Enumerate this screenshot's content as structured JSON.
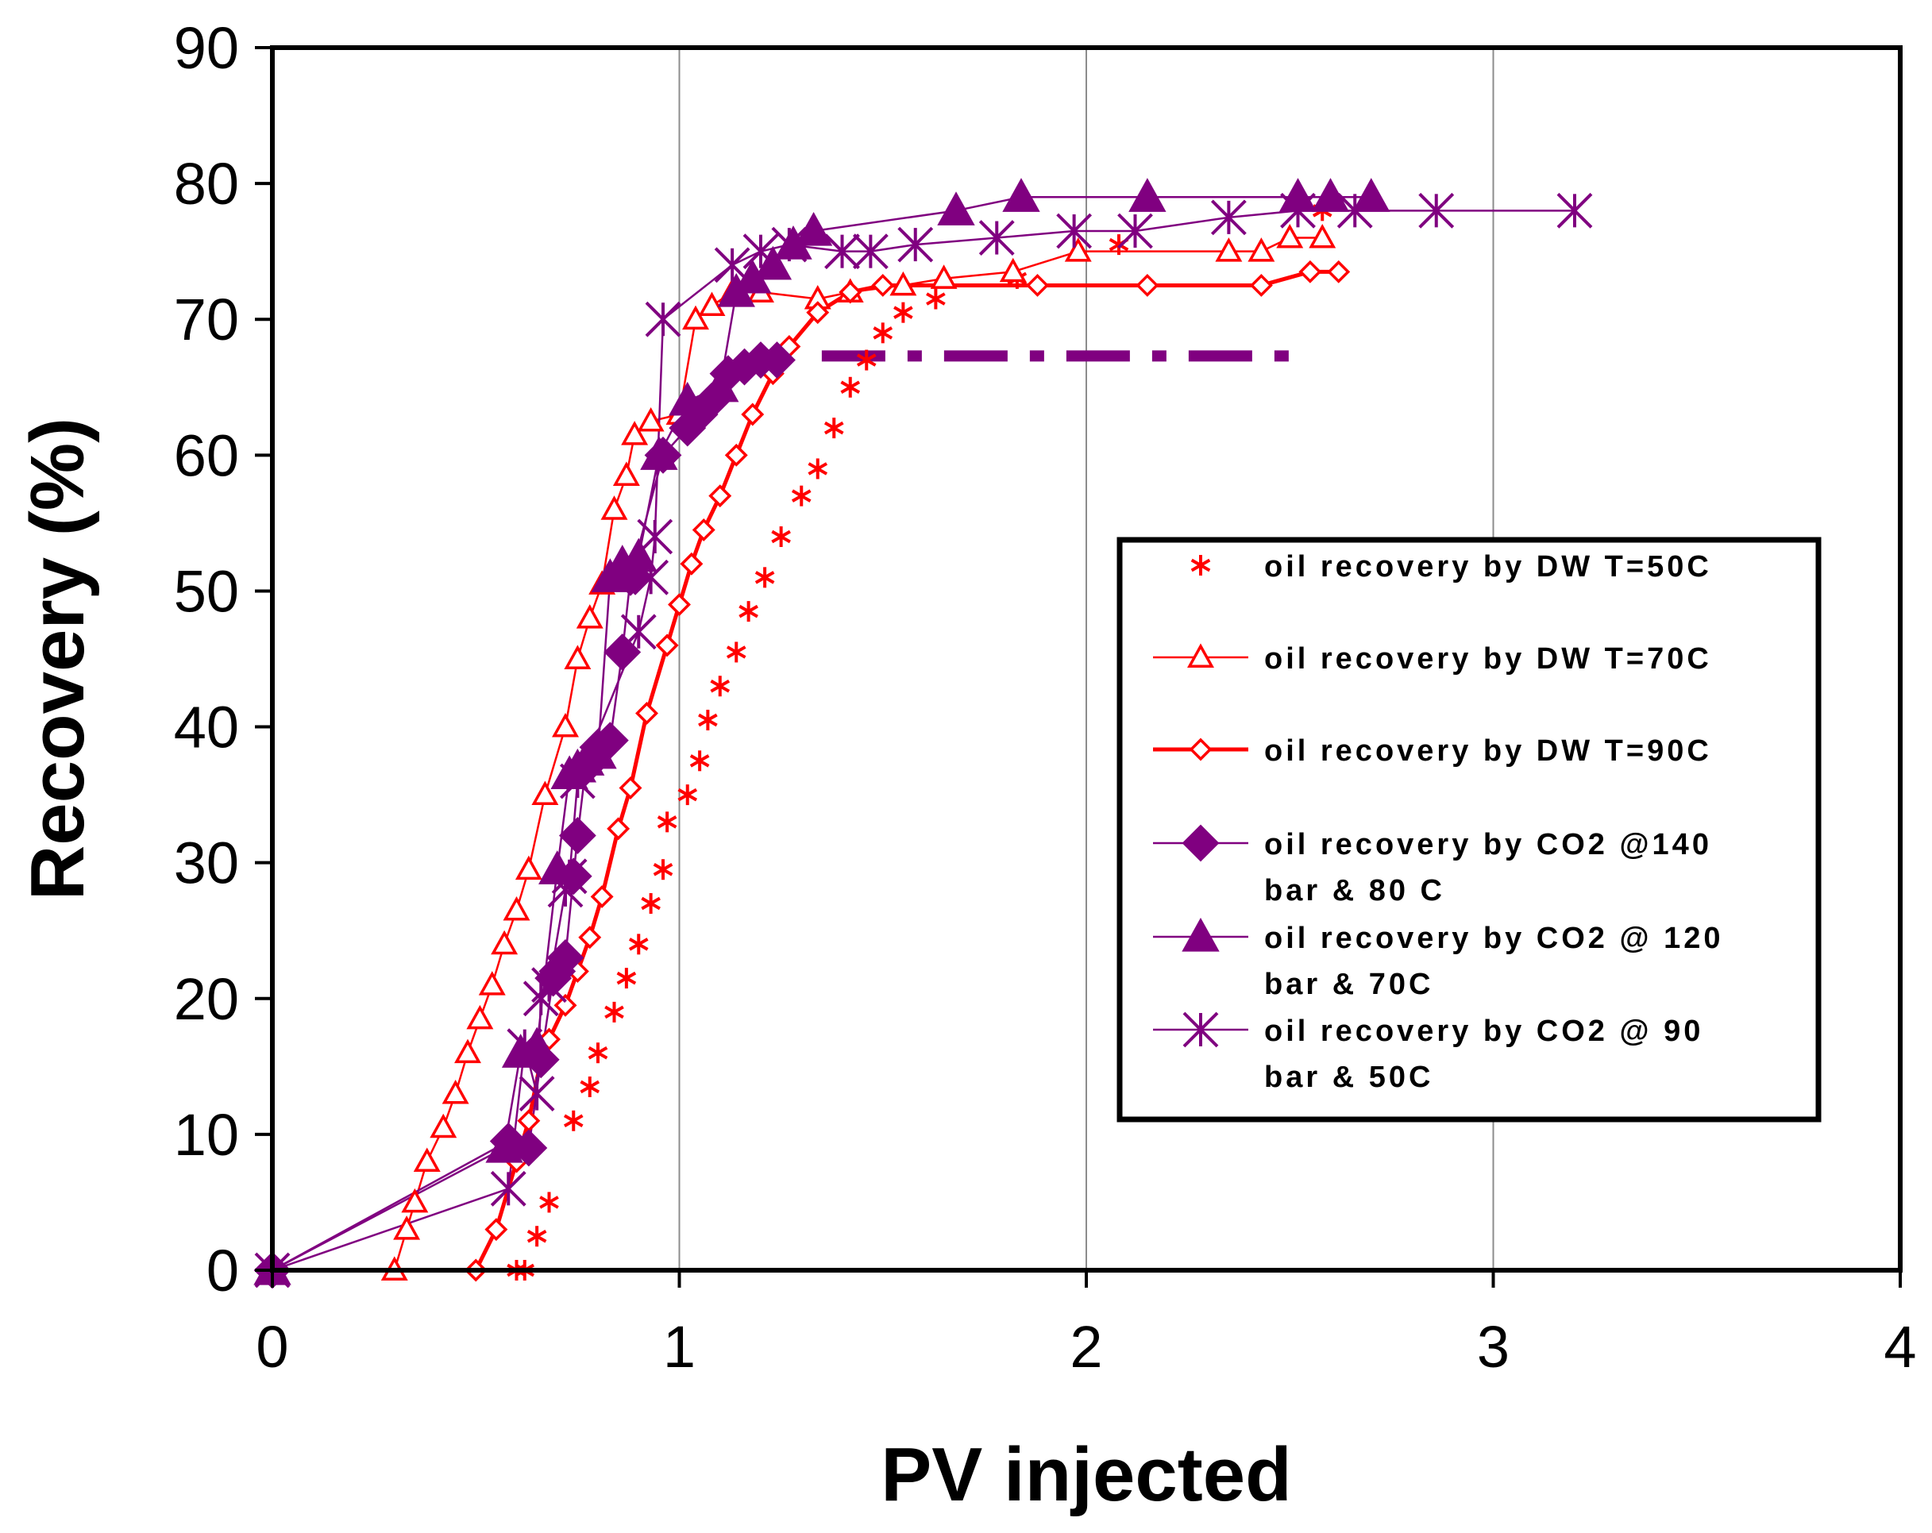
{
  "chart_data": {
    "type": "scatter",
    "xlabel": "PV  injected",
    "ylabel": "Recovery (%)",
    "xlim": [
      0,
      4
    ],
    "ylim": [
      0,
      90
    ],
    "xticks": [
      0,
      1,
      2,
      3,
      4
    ],
    "yticks": [
      0,
      10,
      20,
      30,
      40,
      50,
      60,
      70,
      80,
      90
    ],
    "grid": "vertical",
    "legend_position": "right",
    "series": [
      {
        "name": "oil recovery by DW T=50C",
        "legend": [
          "oil recovery by DW T=50C"
        ],
        "color": "#ff0000",
        "marker": "asterisk",
        "line": "none",
        "x": [
          0,
          0.6,
          0.62,
          0.65,
          0.68,
          0.74,
          0.78,
          0.8,
          0.84,
          0.87,
          0.9,
          0.93,
          0.96,
          0.97,
          1.02,
          1.05,
          1.07,
          1.1,
          1.14,
          1.17,
          1.21,
          1.25,
          1.3,
          1.34,
          1.38,
          1.42,
          1.46,
          1.5,
          1.55,
          1.63,
          1.83,
          2.08,
          2.58
        ],
        "y": [
          0,
          0,
          0,
          2.5,
          5,
          11,
          13.5,
          16,
          19,
          21.5,
          24,
          27,
          29.5,
          33,
          35,
          37.5,
          40.5,
          43,
          45.5,
          48.5,
          51,
          54,
          57,
          59,
          62,
          65,
          67,
          69,
          70.5,
          71.5,
          73,
          75.5,
          78
        ]
      },
      {
        "name": "oil recovery by DW T=70C",
        "legend": [
          "oil recovery by DW T=70C"
        ],
        "color": "#ff0000",
        "marker": "triangle-open",
        "line": "solid-thin",
        "x": [
          0,
          0.3,
          0.33,
          0.35,
          0.38,
          0.42,
          0.45,
          0.48,
          0.51,
          0.54,
          0.57,
          0.6,
          0.63,
          0.67,
          0.72,
          0.75,
          0.78,
          0.81,
          0.84,
          0.87,
          0.89,
          0.93,
          1.0,
          1.04,
          1.08,
          1.13,
          1.2,
          1.34,
          1.42,
          1.55,
          1.65,
          1.82,
          1.98,
          2.35,
          2.43,
          2.5,
          2.58
        ],
        "y": [
          0,
          0,
          3,
          5,
          8,
          10.5,
          13,
          16,
          18.5,
          21,
          24,
          26.5,
          29.5,
          35,
          40,
          45,
          48,
          50.5,
          56,
          58.5,
          61.5,
          62.5,
          63,
          70,
          71,
          72,
          72,
          71.5,
          72,
          72.5,
          73,
          73.5,
          75,
          75,
          75,
          76,
          76
        ]
      },
      {
        "name": "oil recovery by DW T=90C",
        "legend": [
          "oil recovery by DW T=90C"
        ],
        "color": "#ff0000",
        "marker": "diamond-open",
        "line": "solid-thick",
        "x": [
          0,
          0.5,
          0.55,
          0.6,
          0.63,
          0.66,
          0.68,
          0.72,
          0.75,
          0.78,
          0.81,
          0.85,
          0.88,
          0.92,
          0.97,
          1.0,
          1.03,
          1.06,
          1.1,
          1.14,
          1.18,
          1.23,
          1.27,
          1.34,
          1.42,
          1.5,
          1.88,
          2.15,
          2.43,
          2.55,
          2.62
        ],
        "y": [
          0,
          0,
          3,
          8,
          11,
          15.5,
          17,
          19.5,
          22,
          24.5,
          27.5,
          32.5,
          35.5,
          41,
          46,
          49,
          52,
          54.5,
          57,
          60,
          63,
          66,
          68,
          70.5,
          72,
          72.5,
          72.5,
          72.5,
          72.5,
          73.5,
          73.5
        ]
      },
      {
        "name": "oil recovery by CO2  @140 bar & 80 C",
        "legend": [
          "oil recovery by CO2  @140",
          "bar & 80 C"
        ],
        "color": "#800080",
        "marker": "diamond",
        "line": "solid-thin",
        "x": [
          0,
          0.58,
          0.63,
          0.66,
          0.69,
          0.7,
          0.72,
          0.74,
          0.75,
          0.77,
          0.78,
          0.8,
          0.83,
          0.86,
          0.88,
          0.96,
          1.02,
          1.05,
          1.08,
          1.12,
          1.16,
          1.2,
          1.24
        ],
        "y": [
          0,
          9.5,
          9,
          15.5,
          21.5,
          22,
          23,
          29,
          32,
          37,
          37.5,
          38.5,
          39,
          45.5,
          51,
          60,
          62,
          63,
          64,
          66,
          66.5,
          67,
          67
        ]
      },
      {
        "name": "oil recovery by CO2  @ 120 bar & 70C",
        "legend": [
          "oil recovery by CO2  @ 120",
          "bar & 70C"
        ],
        "color": "#800080",
        "marker": "triangle",
        "line": "solid-thin",
        "x": [
          0,
          0.57,
          0.61,
          0.65,
          0.7,
          0.73,
          0.75,
          0.77,
          0.8,
          0.83,
          0.86,
          0.9,
          0.95,
          1.02,
          1.1,
          1.14,
          1.18,
          1.23,
          1.28,
          1.33,
          1.68,
          1.84,
          2.15,
          2.52,
          2.6,
          2.7
        ],
        "y": [
          0,
          9,
          16,
          16.5,
          29.5,
          36.5,
          37,
          37.5,
          38,
          51,
          52,
          52.5,
          60,
          64,
          65,
          72,
          73,
          74,
          75.5,
          76.5,
          78,
          79,
          79,
          79,
          79,
          79
        ]
      },
      {
        "name": "oil recovery by CO2  @ 90 bar & 50C",
        "legend": [
          "oil recovery by CO2  @ 90",
          "bar & 50C"
        ],
        "color": "#800080",
        "marker": "star",
        "line": "solid-thin",
        "x": [
          0,
          0.58,
          0.62,
          0.65,
          0.66,
          0.68,
          0.72,
          0.73,
          0.75,
          0.9,
          0.93,
          0.94,
          0.96,
          1.13,
          1.2,
          1.27,
          1.4,
          1.47,
          1.58,
          1.78,
          1.97,
          2.12,
          2.35,
          2.52,
          2.66,
          2.86,
          3.2
        ],
        "y": [
          0,
          6,
          16.5,
          13,
          20,
          21,
          28,
          29,
          36,
          47,
          51,
          54,
          70,
          74,
          75,
          75.5,
          75,
          75,
          75.5,
          76,
          76.5,
          76.5,
          77.5,
          78,
          78,
          78,
          78
        ]
      }
    ],
    "annotation": {
      "type": "dash-dot-line",
      "color": "#800080",
      "x": [
        1.35,
        2.55
      ],
      "y": 67.3
    }
  }
}
